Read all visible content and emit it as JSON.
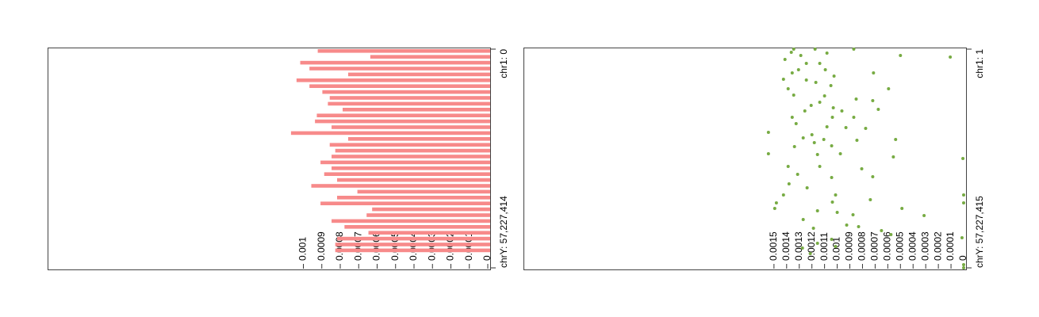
{
  "chart_data": [
    {
      "type": "bar",
      "orientation": "horizontal",
      "color": "#f78a8a",
      "values": [
        0.000935,
        0.00065,
        0.00103,
        0.00098,
        0.00077,
        0.00105,
        0.00098,
        0.00091,
        0.00087,
        0.00088,
        0.0008,
        0.00094,
        0.00095,
        0.00086,
        0.00108,
        0.00077,
        0.00087,
        0.00084,
        0.00086,
        0.00092,
        0.00086,
        0.0009,
        0.00083,
        0.00097,
        0.00072,
        0.00083,
        0.00092,
        0.00064,
        0.00067,
        0.00086,
        0.00079,
        0.00066,
        0.00083,
        0.00084,
        0.00084
      ],
      "ylim": [
        0,
        0.0024
      ],
      "yticks": [
        0,
        0.0001,
        0.0002,
        0.0003,
        0.0004,
        0.0005,
        0.0006,
        0.0007,
        0.0008,
        0.0009,
        0.001
      ],
      "xticks": [
        {
          "value": 0,
          "label": "chr1: 0"
        },
        {
          "value": 1,
          "label": "chrY: 57,227,414"
        }
      ]
    },
    {
      "type": "scatter",
      "color": "#77ab43",
      "x": [
        1,
        1,
        1,
        1658769,
        2073461,
        829385,
        1658769,
        1036731,
        2695499,
        3732229,
        3732229,
        5391397,
        5391397,
        6220381,
        7049765,
        6220381,
        7879149,
        8086495,
        8708533,
        10367301,
        9537917,
        10367301,
        12026069,
        12233415,
        13892183,
        13062799,
        13477491,
        14721567,
        15343605,
        15758297,
        16172989,
        16172989,
        17831757,
        17831757,
        17831757,
        19490525,
        20319909,
        21771331,
        22393369,
        20527255,
        20734601,
        23222753,
        23637445,
        23844791,
        24466828,
        25296212,
        25503558,
        23637444,
        27369672,
        27577018,
        27369672,
        28199056,
        28613748,
        30687208,
        30687208,
        31309246,
        32760668,
        33590052,
        33382706,
        35248820,
        36285550,
        38151664,
        38151664,
        38151664,
        39395740,
        40225124,
        40017778,
        40225124,
        41676546,
        42298584,
        42713276,
        41676546,
        43335314,
        44579390,
        43542660,
        46030812,
        47482234,
        46860196,
        46445504,
        48518964,
        49763040,
        49348348,
        50799770,
        51629154,
        52043846,
        53495268,
        56398112,
        57227415
      ],
      "values": [
        0.001344,
        0.001175,
        0.000869,
        0.0005,
        0.000106,
        0.001363,
        0.001288,
        0.001081,
        0.001413,
        0.001244,
        0.001138,
        0.001306,
        0.001094,
        0.001356,
        0.001025,
        0.000713,
        0.001425,
        0.001244,
        0.001169,
        0.001388,
        0.00105,
        0.000594,
        0.001344,
        0.0011,
        0.001138,
        0.00085,
        0.000719,
        0.001206,
        0.001031,
        0.000675,
        0.001256,
        0.000963,
        0.001356,
        0.001038,
        0.000869,
        0.001325,
        0.001081,
        0.001544,
        0.0012,
        0.000931,
        0.000775,
        0.001269,
        0.001106,
        0.000844,
        0.001181,
        0.001044,
        0.001338,
        0.000538,
        0.001544,
        0.001156,
        0.000975,
        0.000556,
        6e-06,
        0.001388,
        0.001138,
        0.000806,
        0.001313,
        0.001044,
        0.000719,
        0.001381,
        0.001238,
        0,
        0.001425,
        0.001013,
        0.000738,
        0.001481,
        0.001038,
        0,
        0.001494,
        0.001156,
        0.001,
        0.000488,
        0.000875,
        0.001269,
        0.000313,
        0.000925,
        0.00065,
        0.001188,
        0.000831,
        0.000575,
        0.001044,
        1.3e-05,
        0.001156,
        0.001013,
        0.001275,
        0.001213,
        0,
        0
      ],
      "ylim": [
        0,
        0.0035
      ],
      "yticks": [
        0,
        0.0001,
        0.0002,
        0.0003,
        0.0004,
        0.0005,
        0.0006,
        0.0007,
        0.0008,
        0.0009,
        0.001,
        0.0011,
        0.0012,
        0.0013,
        0.0014,
        0.0015
      ],
      "xlim": [
        1,
        57227415
      ],
      "xticks": [
        {
          "value": 1,
          "label": "chr1: 1"
        },
        {
          "value": 57227415,
          "label": "chrY: 57,227,415"
        }
      ]
    }
  ]
}
